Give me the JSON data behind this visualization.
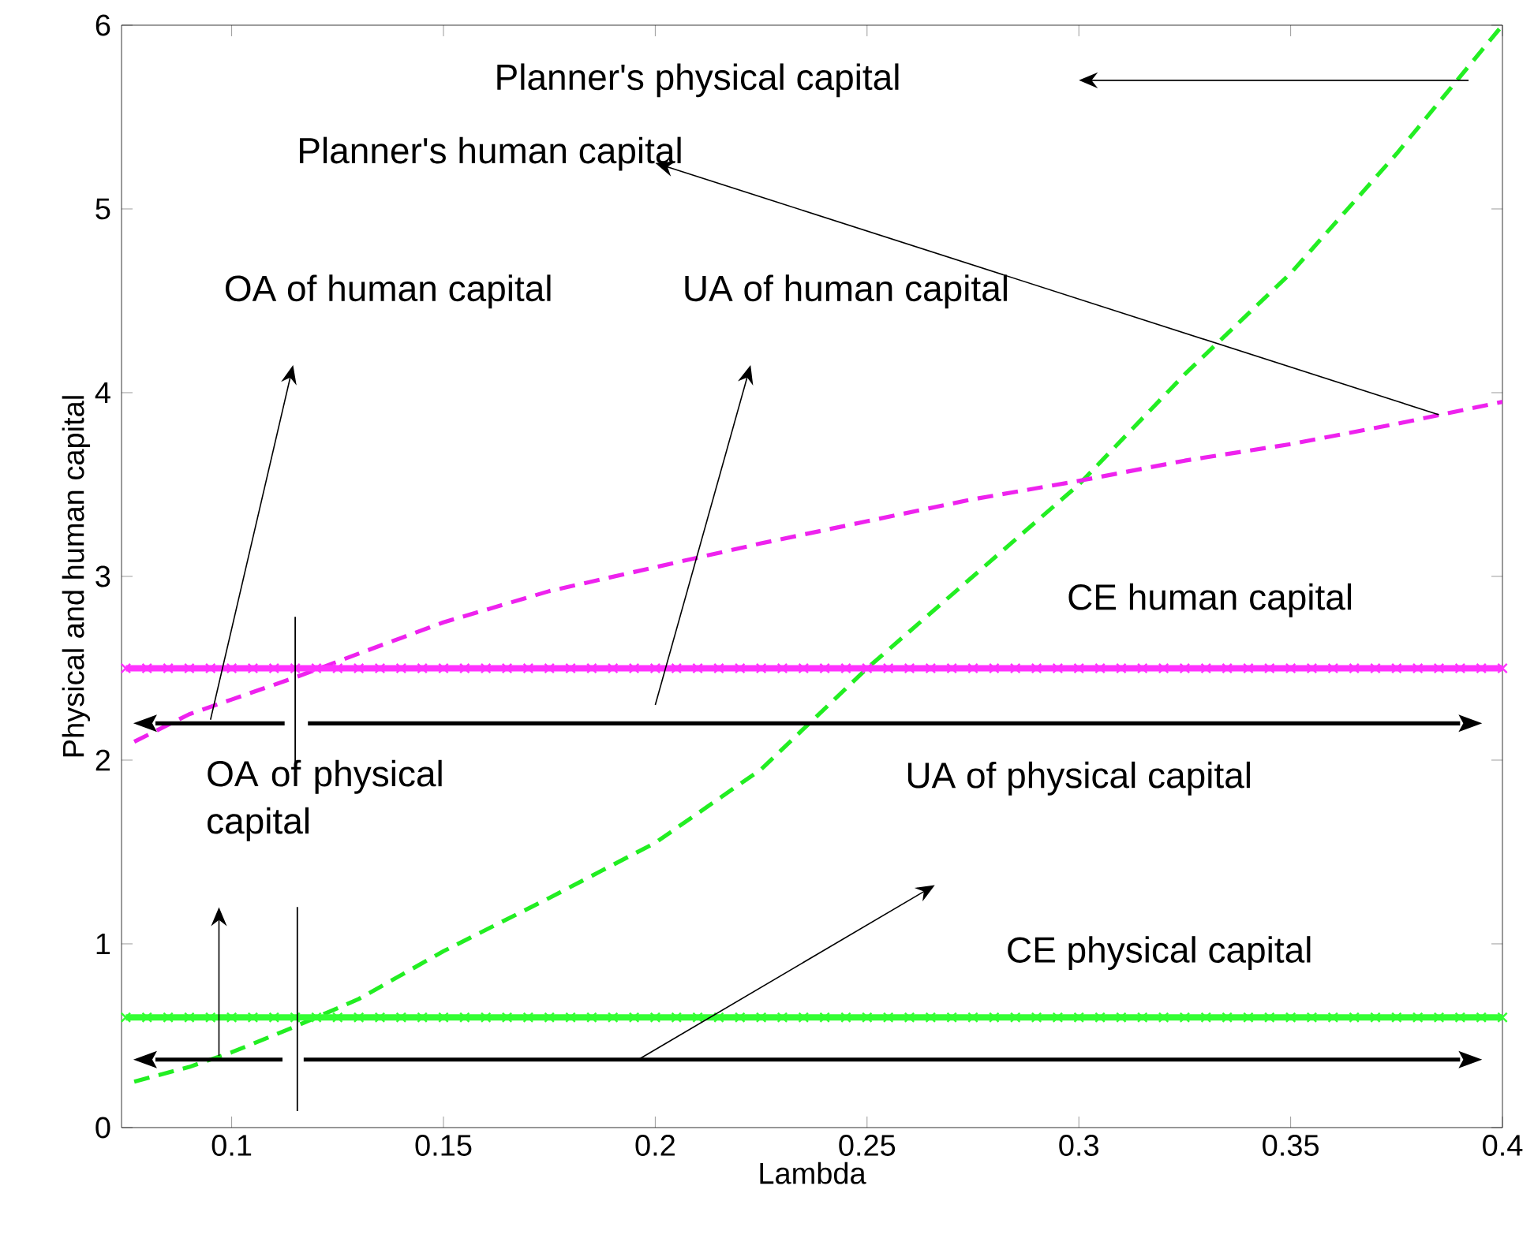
{
  "chart_data": {
    "type": "line",
    "xlabel": "Lambda",
    "ylabel": "Physical and human capital",
    "xlim": [
      0.074,
      0.4
    ],
    "ylim": [
      0,
      6
    ],
    "xticks": [
      0.1,
      0.15,
      0.2,
      0.25,
      0.3,
      0.35,
      0.4
    ],
    "yticks": [
      0,
      1,
      2,
      3,
      4,
      5,
      6
    ],
    "series": [
      {
        "color": "#22ee22",
        "line_style": "dashed",
        "marker": "none",
        "x": [
          0.077,
          0.09,
          0.1,
          0.115,
          0.13,
          0.15,
          0.175,
          0.2,
          0.225,
          0.25,
          0.275,
          0.3,
          0.325,
          0.35,
          0.375,
          0.4
        ],
        "values": [
          0.25,
          0.33,
          0.41,
          0.55,
          0.7,
          0.96,
          1.25,
          1.55,
          1.95,
          2.5,
          3.0,
          3.5,
          4.1,
          4.65,
          5.3,
          6.0
        ]
      },
      {
        "color": "#ee22ee",
        "line_style": "dashed",
        "marker": "none",
        "x": [
          0.077,
          0.09,
          0.1,
          0.115,
          0.13,
          0.15,
          0.175,
          0.2,
          0.225,
          0.25,
          0.275,
          0.3,
          0.325,
          0.35,
          0.375,
          0.4
        ],
        "values": [
          2.1,
          2.25,
          2.33,
          2.45,
          2.58,
          2.75,
          2.92,
          3.05,
          3.18,
          3.3,
          3.42,
          3.52,
          3.63,
          3.72,
          3.83,
          3.95
        ]
      },
      {
        "color": "#ff33ff",
        "line_style": "solid",
        "marker": "cross",
        "x": [
          0.075,
          0.08,
          0.085,
          0.09,
          0.095,
          0.1,
          0.105,
          0.11,
          0.115,
          0.12,
          0.125,
          0.13,
          0.135,
          0.14,
          0.145,
          0.15,
          0.155,
          0.16,
          0.165,
          0.17,
          0.175,
          0.18,
          0.185,
          0.19,
          0.195,
          0.2,
          0.205,
          0.21,
          0.215,
          0.22,
          0.225,
          0.23,
          0.235,
          0.24,
          0.245,
          0.25,
          0.255,
          0.26,
          0.265,
          0.27,
          0.275,
          0.28,
          0.285,
          0.29,
          0.295,
          0.3,
          0.305,
          0.31,
          0.315,
          0.32,
          0.325,
          0.33,
          0.335,
          0.34,
          0.345,
          0.35,
          0.355,
          0.36,
          0.365,
          0.37,
          0.375,
          0.38,
          0.385,
          0.39,
          0.395,
          0.4
        ],
        "values": [
          2.5,
          2.5,
          2.5,
          2.5,
          2.5,
          2.5,
          2.5,
          2.5,
          2.5,
          2.5,
          2.5,
          2.5,
          2.5,
          2.5,
          2.5,
          2.5,
          2.5,
          2.5,
          2.5,
          2.5,
          2.5,
          2.5,
          2.5,
          2.5,
          2.5,
          2.5,
          2.5,
          2.5,
          2.5,
          2.5,
          2.5,
          2.5,
          2.5,
          2.5,
          2.5,
          2.5,
          2.5,
          2.5,
          2.5,
          2.5,
          2.5,
          2.5,
          2.5,
          2.5,
          2.5,
          2.5,
          2.5,
          2.5,
          2.5,
          2.5,
          2.5,
          2.5,
          2.5,
          2.5,
          2.5,
          2.5,
          2.5,
          2.5,
          2.5,
          2.5,
          2.5,
          2.5,
          2.5,
          2.5,
          2.5,
          2.5
        ]
      },
      {
        "color": "#33ff33",
        "line_style": "solid",
        "marker": "cross",
        "x": [
          0.075,
          0.08,
          0.085,
          0.09,
          0.095,
          0.1,
          0.105,
          0.11,
          0.115,
          0.12,
          0.125,
          0.13,
          0.135,
          0.14,
          0.145,
          0.15,
          0.155,
          0.16,
          0.165,
          0.17,
          0.175,
          0.18,
          0.185,
          0.19,
          0.195,
          0.2,
          0.205,
          0.21,
          0.215,
          0.22,
          0.225,
          0.23,
          0.235,
          0.24,
          0.245,
          0.25,
          0.255,
          0.26,
          0.265,
          0.27,
          0.275,
          0.28,
          0.285,
          0.29,
          0.295,
          0.3,
          0.305,
          0.31,
          0.315,
          0.32,
          0.325,
          0.33,
          0.335,
          0.34,
          0.345,
          0.35,
          0.355,
          0.36,
          0.365,
          0.37,
          0.375,
          0.38,
          0.385,
          0.39,
          0.395,
          0.4
        ],
        "values": [
          0.6,
          0.6,
          0.6,
          0.6,
          0.6,
          0.6,
          0.6,
          0.6,
          0.6,
          0.6,
          0.6,
          0.6,
          0.6,
          0.6,
          0.6,
          0.6,
          0.6,
          0.6,
          0.6,
          0.6,
          0.6,
          0.6,
          0.6,
          0.6,
          0.6,
          0.6,
          0.6,
          0.6,
          0.6,
          0.6,
          0.6,
          0.6,
          0.6,
          0.6,
          0.6,
          0.6,
          0.6,
          0.6,
          0.6,
          0.6,
          0.6,
          0.6,
          0.6,
          0.6,
          0.6,
          0.6,
          0.6,
          0.6,
          0.6,
          0.6,
          0.6,
          0.6,
          0.6,
          0.6,
          0.6,
          0.6,
          0.6,
          0.6,
          0.6,
          0.6,
          0.6,
          0.6,
          0.6,
          0.6,
          0.6,
          0.6
        ]
      },
      {
        "color": "#000000",
        "line_style": "solid",
        "marker": "none",
        "x": [
          0.1125,
          0.082
        ],
        "values": [
          2.2,
          2.2
        ]
      },
      {
        "color": "#000000",
        "line_style": "solid",
        "marker": "none",
        "x": [
          0.118,
          0.39
        ],
        "values": [
          2.2,
          2.2
        ]
      },
      {
        "color": "#000000",
        "line_style": "solid",
        "marker": "none",
        "x": [
          0.112,
          0.082
        ],
        "values": [
          0.37,
          0.37
        ]
      },
      {
        "color": "#000000",
        "line_style": "solid",
        "marker": "none",
        "x": [
          0.117,
          0.39
        ],
        "values": [
          0.37,
          0.37
        ]
      }
    ],
    "annotations": [
      "Planner's physical capital",
      "Planner's human capital",
      "OA of human capital",
      "UA of human capital",
      "CE human capital",
      "UA of physical capital",
      "OA of physical capital",
      "CE physical capital"
    ]
  }
}
